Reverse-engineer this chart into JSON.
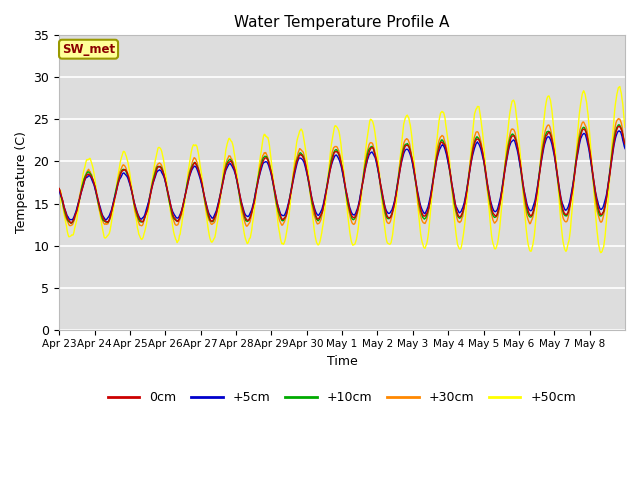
{
  "title": "Water Temperature Profile A",
  "xlabel": "Time",
  "ylabel": "Temperature (C)",
  "ylim": [
    0,
    35
  ],
  "yticks": [
    0,
    5,
    10,
    15,
    20,
    25,
    30,
    35
  ],
  "annotation_text": "SW_met",
  "annotation_color": "#8B0000",
  "annotation_bg": "#FFFF99",
  "annotation_edge": "#999900",
  "series_colors": {
    "0cm": "#CC0000",
    "+5cm": "#0000CC",
    "+10cm": "#00AA00",
    "+30cm": "#FF8800",
    "+50cm": "#FFFF00"
  },
  "bg_color": "#FFFFFF",
  "plot_bg": "#DDDDDD",
  "grid_color": "#FFFFFF",
  "num_days": 16,
  "tick_dates": [
    "Apr 23",
    "Apr 24",
    "Apr 25",
    "Apr 26",
    "Apr 27",
    "Apr 28",
    "Apr 29",
    "Apr 30",
    "May 1",
    "May 2",
    "May 3",
    "May 4",
    "May 5",
    "May 6",
    "May 7",
    "May 8"
  ]
}
